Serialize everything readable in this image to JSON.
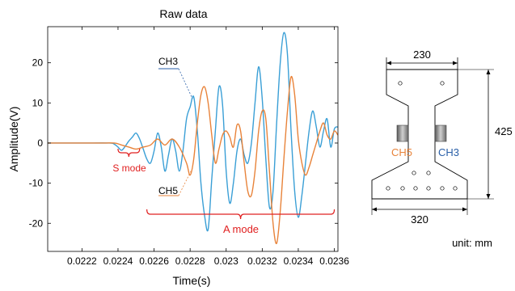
{
  "chart_data": {
    "type": "line",
    "title": "Raw data",
    "xlabel": "Time(s)",
    "ylabel": "Amplitude(V)",
    "xlim": [
      0.02201,
      0.02362
    ],
    "ylim": [
      -27,
      29
    ],
    "xticks": [
      0.0222,
      0.0224,
      0.0226,
      0.0228,
      0.023,
      0.0232,
      0.0234,
      0.0236
    ],
    "xtick_labels": [
      "0.0222",
      "0.0224",
      "0.0226",
      "0.0228",
      "0.023",
      "0.0232",
      "0.0234",
      "0.0236"
    ],
    "yticks": [
      -20,
      -10,
      0,
      10,
      20
    ],
    "ytick_labels": [
      "-20",
      "-10",
      "0",
      "10",
      "20"
    ],
    "grid": false,
    "series": [
      {
        "name": "CH3",
        "color": "#3a9fd6",
        "x": [
          0.02201,
          0.0222,
          0.02235,
          0.02238,
          0.0224,
          0.02242,
          0.02244,
          0.02246,
          0.02248,
          0.0225,
          0.02252,
          0.02254,
          0.02256,
          0.02258,
          0.0226,
          0.02262,
          0.02264,
          0.02266,
          0.02268,
          0.0227,
          0.02272,
          0.02274,
          0.02276,
          0.02278,
          0.0228,
          0.02282,
          0.02284,
          0.02286,
          0.02288,
          0.0229,
          0.02292,
          0.02294,
          0.02296,
          0.02298,
          0.023,
          0.02302,
          0.02304,
          0.02306,
          0.02308,
          0.0231,
          0.02312,
          0.02314,
          0.02316,
          0.02318,
          0.0232,
          0.02322,
          0.02324,
          0.02326,
          0.02328,
          0.0233,
          0.02332,
          0.02334,
          0.02336,
          0.02338,
          0.0234,
          0.02342,
          0.02344,
          0.02346,
          0.02348,
          0.0235,
          0.02352,
          0.02354,
          0.02356,
          0.02358,
          0.0236,
          0.02362
        ],
        "y": [
          0,
          0,
          0,
          -0.3,
          -1.0,
          -1.8,
          -0.8,
          0.5,
          1.5,
          2.5,
          1.0,
          -1.5,
          -4.0,
          -5.0,
          -2.0,
          2.5,
          -1.0,
          -7.0,
          -3.0,
          1.0,
          -2.0,
          -7.0,
          -2.0,
          6.0,
          9.0,
          11.5,
          3.0,
          -10.0,
          -18.0,
          -21.5,
          -9.0,
          3.0,
          14.0,
          9.5,
          -7.0,
          -15.0,
          -10.0,
          -2.0,
          1.0,
          -3.0,
          -5.0,
          0,
          10.0,
          19.0,
          11.0,
          -4.0,
          -16.0,
          -12.0,
          5.0,
          20.0,
          27.5,
          22.0,
          3.0,
          -12.0,
          -18.5,
          -13.0,
          -5.0,
          3.0,
          8.0,
          4.0,
          -1.0,
          3.0,
          6.0,
          -1.0,
          3.5,
          4.0
        ]
      },
      {
        "name": "CH5",
        "color": "#e8833a",
        "x": [
          0.02201,
          0.0223,
          0.02238,
          0.02242,
          0.02246,
          0.0225,
          0.02254,
          0.02258,
          0.02262,
          0.02266,
          0.0227,
          0.02274,
          0.02278,
          0.0228,
          0.02282,
          0.02284,
          0.02286,
          0.02288,
          0.0229,
          0.02292,
          0.02294,
          0.02296,
          0.02298,
          0.023,
          0.02302,
          0.02304,
          0.02306,
          0.02308,
          0.0231,
          0.02312,
          0.02314,
          0.02316,
          0.02318,
          0.0232,
          0.02322,
          0.02324,
          0.02326,
          0.02328,
          0.0233,
          0.02332,
          0.02334,
          0.02336,
          0.02338,
          0.0234,
          0.02342,
          0.02344,
          0.02346,
          0.02348,
          0.0235,
          0.02352,
          0.02354,
          0.02356,
          0.02358,
          0.0236,
          0.02362
        ],
        "y": [
          0,
          0,
          0,
          -0.5,
          -1.0,
          -1.5,
          -1.0,
          -0.5,
          1.0,
          -0.5,
          1.0,
          -1.0,
          -5.0,
          -8.0,
          -4.0,
          5.0,
          12.0,
          14.0,
          10.0,
          2.0,
          -5.0,
          -1.5,
          2.0,
          3.0,
          1.5,
          -1.0,
          4.5,
          3.0,
          -5.0,
          -12.0,
          -13.0,
          -7.0,
          3.0,
          8.0,
          6.0,
          -7.0,
          -20.0,
          -25.0,
          -17.0,
          -4.0,
          8.0,
          16.5,
          12.0,
          1.0,
          -5.0,
          -8.0,
          -6.0,
          -3.0,
          0,
          3.0,
          5.0,
          2.0,
          1.0,
          3.0,
          2.0
        ]
      }
    ],
    "annotations": {
      "ch3_label": "CH3",
      "ch5_label": "CH5",
      "s_mode_label": "S mode",
      "a_mode_label": "A mode",
      "s_mode_range": [
        0.0224,
        0.02252
      ],
      "a_mode_range": [
        0.02256,
        0.0236
      ]
    }
  },
  "diagram": {
    "top_width": "230",
    "height": "425",
    "bottom_width": "320",
    "ch5_label": "CH5",
    "ch3_label": "CH3",
    "unit_label": "unit: mm"
  },
  "colors": {
    "ch3": "#3a9fd6",
    "ch5": "#e8833a",
    "annotation_red": "#e02020",
    "label_blue": "#2a5fa8",
    "sensor_gray": "#8a8a8a"
  }
}
